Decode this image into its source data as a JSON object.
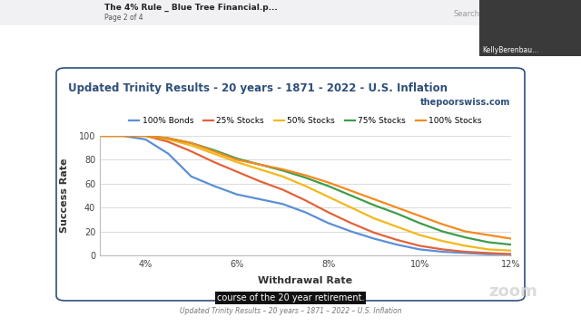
{
  "chart_data": {
    "type": "line",
    "title": "Updated Trinity Results - 20 years - 1871 - 2022 - U.S. Inflation",
    "subtitle": "thepoorswiss.com",
    "x_label": "Withdrawal Rate",
    "y_label": "Success Rate",
    "x": [
      3,
      3.5,
      4,
      4.5,
      5,
      5.5,
      6,
      6.5,
      7,
      7.5,
      8,
      8.5,
      9,
      9.5,
      10,
      10.5,
      11,
      11.5,
      12
    ],
    "series": [
      {
        "name": "100% Bonds",
        "color": "#5b8fd6",
        "values": [
          100,
          100,
          97,
          85,
          66,
          58,
          51,
          47,
          43,
          36,
          27,
          20,
          14,
          9,
          5,
          3,
          2,
          1,
          1
        ]
      },
      {
        "name": "25% Stocks",
        "color": "#e2623a",
        "values": [
          100,
          100,
          100,
          95,
          87,
          78,
          70,
          62,
          55,
          46,
          36,
          27,
          19,
          13,
          8,
          5,
          3,
          2,
          1
        ]
      },
      {
        "name": "50% Stocks",
        "color": "#f3b81a",
        "values": [
          100,
          100,
          100,
          97,
          92,
          85,
          78,
          72,
          66,
          58,
          49,
          40,
          31,
          24,
          17,
          12,
          8,
          5,
          4
        ]
      },
      {
        "name": "75% Stocks",
        "color": "#3e9c4b",
        "values": [
          100,
          100,
          100,
          98,
          94,
          88,
          81,
          76,
          71,
          65,
          58,
          50,
          42,
          35,
          27,
          20,
          15,
          11,
          9
        ]
      },
      {
        "name": "100% Stocks",
        "color": "#f58a1f",
        "values": [
          100,
          100,
          100,
          98,
          94,
          87,
          80,
          76,
          72,
          67,
          61,
          54,
          47,
          40,
          33,
          26,
          20,
          17,
          14
        ]
      }
    ],
    "xlim": [
      3,
      12
    ],
    "xticks": [
      {
        "value": 4,
        "label": "4%"
      },
      {
        "value": 6,
        "label": "6%"
      },
      {
        "value": 8,
        "label": "8%"
      },
      {
        "value": 10,
        "label": "10%"
      },
      {
        "value": 12,
        "label": "12%"
      }
    ],
    "ylim": [
      0,
      100
    ],
    "yticks": [
      0,
      20,
      40,
      60,
      80,
      100
    ],
    "grid": "y",
    "legend": "upper center",
    "annotations": [
      "The 4% Rule _ Blue Tree Financial.p...",
      "Page 2 of 4",
      "Search",
      "KellyBerenbau...",
      "course of the 20 year retirement.",
      "Updated Trinity Results – 20 years – 1871 – 2022 – U.S. Inflation",
      "zoom"
    ]
  }
}
